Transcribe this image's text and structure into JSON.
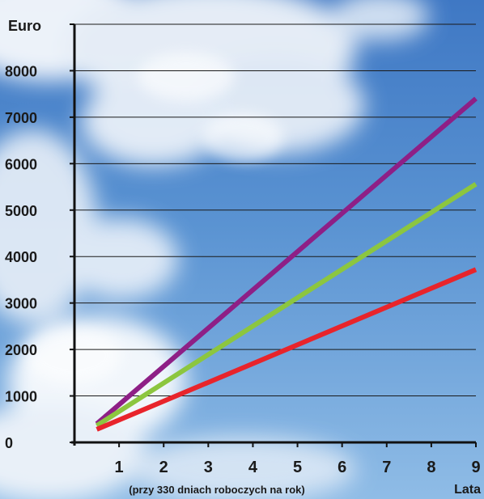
{
  "chart_data": {
    "type": "line",
    "title": "",
    "ylabel": "Euro",
    "xlabel": "Lata",
    "xlabel_note": "(przy 330 dniach roboczych na rok)",
    "x_ticks": [
      "1",
      "2",
      "3",
      "4",
      "5",
      "6",
      "7",
      "8",
      "9"
    ],
    "y_ticks": [
      "0",
      "1000",
      "2000",
      "3000",
      "4000",
      "5000",
      "6000",
      "7000",
      "8000"
    ],
    "xlim": [
      0,
      9
    ],
    "ylim": [
      0,
      9000
    ],
    "grid": true,
    "background": "sky-with-clouds",
    "series": [
      {
        "color": "#8e1f86",
        "x": [
          0.5,
          9
        ],
        "y": [
          400,
          7400
        ]
      },
      {
        "color": "#8cc63f",
        "x": [
          0.5,
          9
        ],
        "y": [
          360,
          5560
        ]
      },
      {
        "color": "#e8242b",
        "x": [
          0.5,
          9
        ],
        "y": [
          280,
          3720
        ]
      }
    ]
  }
}
